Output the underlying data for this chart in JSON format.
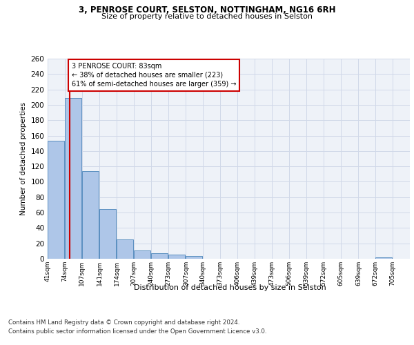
{
  "title1": "3, PENROSE COURT, SELSTON, NOTTINGHAM, NG16 6RH",
  "title2": "Size of property relative to detached houses in Selston",
  "xlabel": "Distribution of detached houses by size in Selston",
  "ylabel": "Number of detached properties",
  "footer1": "Contains HM Land Registry data © Crown copyright and database right 2024.",
  "footer2": "Contains public sector information licensed under the Open Government Licence v3.0.",
  "bar_edges": [
    41,
    74,
    107,
    141,
    174,
    207,
    240,
    273,
    307,
    340,
    373,
    406,
    439,
    473,
    506,
    539,
    572,
    605,
    639,
    672,
    705
  ],
  "bar_values": [
    153,
    209,
    114,
    65,
    25,
    11,
    7,
    5,
    4,
    0,
    0,
    0,
    0,
    0,
    0,
    0,
    0,
    0,
    0,
    2,
    0
  ],
  "bar_color": "#aec6e8",
  "bar_edge_color": "#5a8fc0",
  "property_size": 83,
  "annotation_text": "3 PENROSE COURT: 83sqm\n← 38% of detached houses are smaller (223)\n61% of semi-detached houses are larger (359) →",
  "annotation_box_color": "#ffffff",
  "annotation_box_edge": "#cc0000",
  "vline_color": "#cc0000",
  "grid_color": "#d0d8e8",
  "bg_color": "#eef2f8",
  "ylim": [
    0,
    260
  ],
  "yticks": [
    0,
    20,
    40,
    60,
    80,
    100,
    120,
    140,
    160,
    180,
    200,
    220,
    240,
    260
  ]
}
